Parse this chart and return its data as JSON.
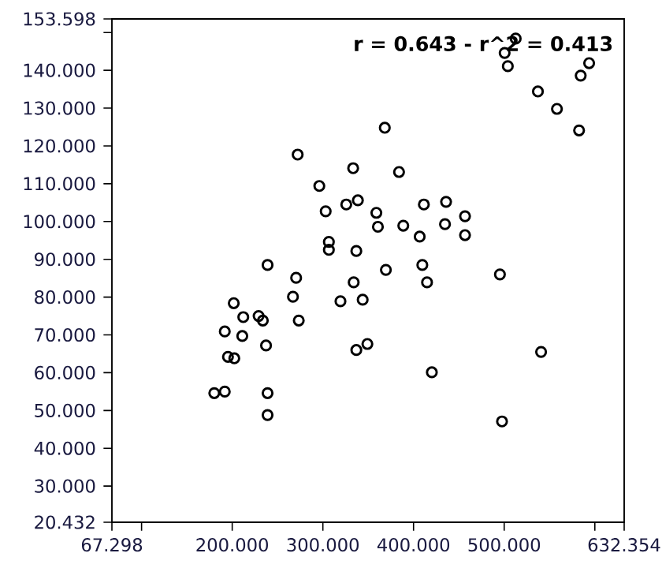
{
  "chart_data": {
    "type": "scatter",
    "color": "#000000",
    "marker": "circle",
    "grid": false,
    "annotations": [
      "r = 0.643 - r^2 = 0.413"
    ],
    "x": [
      500.5,
      512.7,
      504,
      593.7,
      584.4,
      537.2,
      558.2,
      582.6,
      368.3,
      272.2,
      333.4,
      384,
      296.1,
      303.1,
      325.8,
      338.6,
      359,
      360.7,
      388.7,
      411.4,
      435.9,
      456.8,
      434.7,
      456.8,
      406.8,
      306.6,
      306.6,
      336.9,
      239,
      270.5,
      369.5,
      409.7,
      495.3,
      334,
      414.9,
      267,
      201.7,
      319.4,
      343.9,
      212.2,
      229.1,
      233.8,
      273.4,
      191.8,
      211.1,
      237.3,
      336.9,
      349.1,
      540.7,
      195.3,
      202.3,
      420.2,
      180.2,
      191.8,
      239,
      239,
      497.6
    ],
    "values": [
      144.6,
      148.4,
      141.1,
      141.9,
      138.6,
      134.4,
      129.8,
      124.1,
      124.8,
      117.7,
      114.1,
      113.1,
      109.4,
      102.7,
      104.5,
      105.6,
      102.3,
      98.6,
      98.9,
      104.5,
      105.2,
      101.4,
      99.3,
      96.4,
      96.0,
      94.6,
      92.5,
      92.2,
      88.5,
      85.1,
      87.2,
      88.5,
      86.0,
      83.9,
      83.9,
      80.1,
      78.4,
      78.9,
      79.3,
      74.7,
      75.0,
      73.8,
      73.8,
      70.9,
      69.7,
      67.2,
      66.0,
      67.6,
      65.5,
      64.2,
      63.8,
      60.1,
      54.6,
      55.0,
      54.6,
      48.8,
      47.1
    ],
    "xlim": [
      67.298,
      632.354
    ],
    "ylim": [
      20.432,
      153.598
    ],
    "xticks": [
      {
        "value": 67.298,
        "label": "67.298"
      },
      {
        "value": 100,
        "label": null
      },
      {
        "value": 200,
        "label": "200.000"
      },
      {
        "value": 300,
        "label": "300.000"
      },
      {
        "value": 400,
        "label": "400.000"
      },
      {
        "value": 500,
        "label": "500.000"
      },
      {
        "value": 600,
        "label": null
      },
      {
        "value": 632.354,
        "label": "632.354"
      }
    ],
    "yticks": [
      {
        "value": 20.432,
        "label": "20.432"
      },
      {
        "value": 30,
        "label": "30.000"
      },
      {
        "value": 40,
        "label": "40.000"
      },
      {
        "value": 50,
        "label": "50.000"
      },
      {
        "value": 60,
        "label": "60.000"
      },
      {
        "value": 70,
        "label": "70.000"
      },
      {
        "value": 80,
        "label": "80.000"
      },
      {
        "value": 90,
        "label": "90.000"
      },
      {
        "value": 100,
        "label": "100.000"
      },
      {
        "value": 110,
        "label": "110.000"
      },
      {
        "value": 120,
        "label": "120.000"
      },
      {
        "value": 130,
        "label": "130.000"
      },
      {
        "value": 140,
        "label": "140.000"
      },
      {
        "value": 150,
        "label": null
      },
      {
        "value": 153.598,
        "label": "153.598"
      }
    ]
  }
}
